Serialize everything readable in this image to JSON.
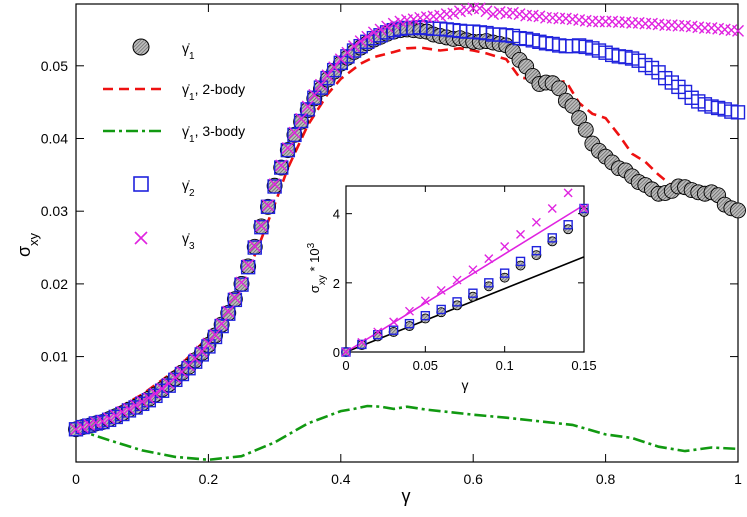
{
  "chart_data": {
    "type": "scatter",
    "main": {
      "xlabel": "γ",
      "ylabel": "σ",
      "ylabel_sub": "xy",
      "xlim": [
        0,
        1
      ],
      "ylim": [
        -0.0045,
        0.0585
      ],
      "xticks": [
        "0",
        "0.2",
        "0.4",
        "0.6",
        "0.8",
        "1"
      ],
      "xtick_values": [
        0,
        0.2,
        0.4,
        0.6,
        0.8,
        1
      ],
      "yticks": [
        "0.01",
        "0.02",
        "0.03",
        "0.04",
        "0.05"
      ],
      "ytick_values": [
        0.01,
        0.02,
        0.03,
        0.04,
        0.05
      ],
      "legend": [
        {
          "name": "γ̇",
          "sub": "1",
          "suffix": "",
          "marker": "circle",
          "color": "#000000"
        },
        {
          "name": "γ̇",
          "sub": "1",
          "suffix": ", 2-body",
          "marker": "dashed-line",
          "color": "#ee1111"
        },
        {
          "name": "γ̇",
          "sub": "1",
          "suffix": ", 3-body",
          "marker": "dashdot-line",
          "color": "#119911"
        },
        {
          "name": "γ̇",
          "sub": "2",
          "suffix": "",
          "marker": "square",
          "color": "#1f22dd"
        },
        {
          "name": "γ̇",
          "sub": "3",
          "suffix": "",
          "marker": "cross",
          "color": "#e023e0"
        }
      ],
      "series": [
        {
          "name": "gamma_dot_1",
          "marker": "circle",
          "x": [
            0,
            0.01,
            0.02,
            0.03,
            0.04,
            0.05,
            0.06,
            0.07,
            0.08,
            0.09,
            0.1,
            0.11,
            0.12,
            0.13,
            0.14,
            0.15,
            0.16,
            0.17,
            0.18,
            0.19,
            0.2,
            0.21,
            0.22,
            0.23,
            0.24,
            0.25,
            0.26,
            0.27,
            0.28,
            0.29,
            0.3,
            0.31,
            0.32,
            0.33,
            0.34,
            0.35,
            0.36,
            0.37,
            0.38,
            0.39,
            0.4,
            0.41,
            0.42,
            0.43,
            0.44,
            0.45,
            0.46,
            0.47,
            0.48,
            0.49,
            0.5,
            0.51,
            0.52,
            0.53,
            0.54,
            0.55,
            0.56,
            0.57,
            0.58,
            0.59,
            0.6,
            0.61,
            0.62,
            0.63,
            0.64,
            0.65,
            0.66,
            0.67,
            0.68,
            0.69,
            0.7,
            0.71,
            0.72,
            0.73,
            0.74,
            0.75,
            0.76,
            0.77,
            0.78,
            0.79,
            0.8,
            0.81,
            0.82,
            0.83,
            0.84,
            0.85,
            0.86,
            0.87,
            0.88,
            0.89,
            0.9,
            0.91,
            0.92,
            0.93,
            0.94,
            0.95,
            0.96,
            0.97,
            0.98,
            0.99,
            1.0
          ],
          "y": [
            0.0,
            0.0003,
            0.0005,
            0.0008,
            0.001,
            0.0014,
            0.0018,
            0.0022,
            0.0027,
            0.0031,
            0.0036,
            0.0042,
            0.0048,
            0.0055,
            0.0062,
            0.007,
            0.0078,
            0.0086,
            0.0095,
            0.0105,
            0.0116,
            0.0129,
            0.0144,
            0.016,
            0.0179,
            0.02,
            0.0224,
            0.0251,
            0.0279,
            0.0306,
            0.0335,
            0.036,
            0.0384,
            0.0405,
            0.0423,
            0.0439,
            0.0455,
            0.0468,
            0.0481,
            0.0492,
            0.0503,
            0.0511,
            0.0519,
            0.0525,
            0.0531,
            0.0536,
            0.054,
            0.0544,
            0.0547,
            0.0549,
            0.055,
            0.0549,
            0.0548,
            0.0547,
            0.0543,
            0.0541,
            0.0539,
            0.0537,
            0.0538,
            0.0535,
            0.0533,
            0.0533,
            0.0534,
            0.0532,
            0.053,
            0.0528,
            0.052,
            0.0508,
            0.0499,
            0.0486,
            0.0475,
            0.0477,
            0.0476,
            0.0469,
            0.0452,
            0.0445,
            0.0428,
            0.0412,
            0.0393,
            0.0383,
            0.0375,
            0.0367,
            0.0359,
            0.0356,
            0.0348,
            0.034,
            0.0336,
            0.033,
            0.0324,
            0.0325,
            0.0328,
            0.0334,
            0.0333,
            0.0329,
            0.0326,
            0.0324,
            0.0326,
            0.0322,
            0.0309,
            0.0304,
            0.0301
          ]
        },
        {
          "name": "gamma_dot_2",
          "marker": "square",
          "x": [
            0,
            0.01,
            0.02,
            0.03,
            0.04,
            0.05,
            0.06,
            0.07,
            0.08,
            0.09,
            0.1,
            0.11,
            0.12,
            0.13,
            0.14,
            0.15,
            0.16,
            0.17,
            0.18,
            0.19,
            0.2,
            0.21,
            0.22,
            0.23,
            0.24,
            0.25,
            0.26,
            0.27,
            0.28,
            0.29,
            0.3,
            0.31,
            0.32,
            0.33,
            0.34,
            0.35,
            0.36,
            0.37,
            0.38,
            0.39,
            0.4,
            0.41,
            0.42,
            0.43,
            0.44,
            0.45,
            0.46,
            0.47,
            0.48,
            0.49,
            0.5,
            0.51,
            0.52,
            0.53,
            0.54,
            0.55,
            0.56,
            0.57,
            0.58,
            0.59,
            0.6,
            0.61,
            0.62,
            0.63,
            0.64,
            0.65,
            0.66,
            0.67,
            0.68,
            0.69,
            0.7,
            0.71,
            0.72,
            0.73,
            0.74,
            0.75,
            0.76,
            0.77,
            0.78,
            0.79,
            0.8,
            0.81,
            0.82,
            0.83,
            0.84,
            0.85,
            0.86,
            0.87,
            0.88,
            0.89,
            0.9,
            0.91,
            0.92,
            0.93,
            0.94,
            0.95,
            0.96,
            0.97,
            0.98,
            0.99,
            1.0
          ],
          "y": [
            0.0,
            0.0003,
            0.0005,
            0.0008,
            0.001,
            0.0013,
            0.0017,
            0.0021,
            0.0026,
            0.003,
            0.0035,
            0.004,
            0.0046,
            0.0053,
            0.006,
            0.0068,
            0.0076,
            0.0084,
            0.0093,
            0.0103,
            0.0114,
            0.0127,
            0.0142,
            0.0159,
            0.0178,
            0.0199,
            0.0223,
            0.025,
            0.0278,
            0.0306,
            0.0334,
            0.036,
            0.0384,
            0.0405,
            0.0424,
            0.044,
            0.0456,
            0.047,
            0.0483,
            0.0494,
            0.0504,
            0.0513,
            0.0521,
            0.0527,
            0.0533,
            0.0538,
            0.0542,
            0.0546,
            0.0549,
            0.0551,
            0.0552,
            0.0552,
            0.0553,
            0.0552,
            0.0551,
            0.0551,
            0.055,
            0.0549,
            0.0548,
            0.0547,
            0.0547,
            0.0546,
            0.0545,
            0.0543,
            0.0543,
            0.0542,
            0.0541,
            0.0538,
            0.0537,
            0.0535,
            0.0533,
            0.0531,
            0.053,
            0.0528,
            0.0527,
            0.0527,
            0.0528,
            0.0526,
            0.0524,
            0.0521,
            0.0518,
            0.0515,
            0.0513,
            0.0512,
            0.051,
            0.0507,
            0.0501,
            0.0497,
            0.0491,
            0.0483,
            0.0477,
            0.0471,
            0.0464,
            0.0456,
            0.0451,
            0.0447,
            0.0444,
            0.0442,
            0.044,
            0.0437,
            0.0436
          ]
        },
        {
          "name": "gamma_dot_3",
          "marker": "cross",
          "x": [
            0,
            0.01,
            0.02,
            0.03,
            0.04,
            0.05,
            0.06,
            0.07,
            0.08,
            0.09,
            0.1,
            0.11,
            0.12,
            0.13,
            0.14,
            0.15,
            0.16,
            0.17,
            0.18,
            0.19,
            0.2,
            0.21,
            0.22,
            0.23,
            0.24,
            0.25,
            0.26,
            0.27,
            0.28,
            0.29,
            0.3,
            0.31,
            0.32,
            0.33,
            0.34,
            0.35,
            0.36,
            0.37,
            0.38,
            0.39,
            0.4,
            0.41,
            0.42,
            0.43,
            0.44,
            0.45,
            0.46,
            0.47,
            0.48,
            0.49,
            0.5,
            0.51,
            0.52,
            0.53,
            0.54,
            0.55,
            0.56,
            0.57,
            0.58,
            0.59,
            0.6,
            0.61,
            0.62,
            0.63,
            0.64,
            0.65,
            0.66,
            0.67,
            0.68,
            0.69,
            0.7,
            0.71,
            0.72,
            0.73,
            0.74,
            0.75,
            0.76,
            0.77,
            0.78,
            0.79,
            0.8,
            0.81,
            0.82,
            0.83,
            0.84,
            0.85,
            0.86,
            0.87,
            0.88,
            0.89,
            0.9,
            0.91,
            0.92,
            0.93,
            0.94,
            0.95,
            0.96,
            0.97,
            0.98,
            0.99,
            1.0
          ],
          "y": [
            0.0,
            0.0003,
            0.0006,
            0.0009,
            0.0011,
            0.0015,
            0.0019,
            0.0024,
            0.0028,
            0.0033,
            0.0038,
            0.0043,
            0.0049,
            0.0056,
            0.0063,
            0.0071,
            0.0079,
            0.0088,
            0.0097,
            0.0107,
            0.0118,
            0.013,
            0.0145,
            0.0162,
            0.0181,
            0.0202,
            0.0226,
            0.0252,
            0.028,
            0.0308,
            0.0337,
            0.0363,
            0.0387,
            0.0408,
            0.0427,
            0.0444,
            0.046,
            0.0474,
            0.0487,
            0.0498,
            0.0509,
            0.0518,
            0.0527,
            0.0534,
            0.054,
            0.0546,
            0.055,
            0.0554,
            0.0558,
            0.0561,
            0.0563,
            0.0564,
            0.0566,
            0.0567,
            0.0568,
            0.0569,
            0.0571,
            0.0572,
            0.0575,
            0.0577,
            0.0579,
            0.0579,
            0.0575,
            0.0571,
            0.0574,
            0.0572,
            0.0573,
            0.0571,
            0.0569,
            0.0569,
            0.0568,
            0.0566,
            0.0566,
            0.0565,
            0.0565,
            0.0564,
            0.0563,
            0.0562,
            0.0561,
            0.0561,
            0.0561,
            0.0561,
            0.056,
            0.056,
            0.0559,
            0.0559,
            0.0558,
            0.0558,
            0.0557,
            0.0556,
            0.0556,
            0.0555,
            0.0555,
            0.0554,
            0.0553,
            0.0552,
            0.0552,
            0.0551,
            0.055,
            0.0549,
            0.0548
          ]
        }
      ],
      "lines": [
        {
          "name": "2-body",
          "style": "dashed",
          "color": "#ee1111",
          "x": [
            0,
            0.05,
            0.1,
            0.15,
            0.2,
            0.25,
            0.28,
            0.3,
            0.32,
            0.35,
            0.38,
            0.4,
            0.43,
            0.45,
            0.48,
            0.5,
            0.52,
            0.55,
            0.58,
            0.6,
            0.62,
            0.65,
            0.67,
            0.7,
            0.72,
            0.74,
            0.76,
            0.78,
            0.8,
            0.82,
            0.84,
            0.86,
            0.88,
            0.9,
            0.92,
            0.94,
            0.96,
            0.98,
            1.0
          ],
          "y": [
            0.0,
            0.0022,
            0.0048,
            0.0081,
            0.0127,
            0.0195,
            0.0262,
            0.0309,
            0.0359,
            0.0418,
            0.0461,
            0.0482,
            0.0503,
            0.0512,
            0.0519,
            0.0524,
            0.0525,
            0.0521,
            0.0524,
            0.0521,
            0.0517,
            0.0509,
            0.0484,
            0.048,
            0.0476,
            0.0479,
            0.0449,
            0.0434,
            0.0428,
            0.0405,
            0.0379,
            0.0368,
            0.035,
            0.0335,
            0.0337,
            0.0332,
            0.0325,
            0.0316,
            0.0304
          ]
        },
        {
          "name": "3-body",
          "style": "dashdot",
          "color": "#119911",
          "x": [
            0,
            0.05,
            0.1,
            0.15,
            0.2,
            0.25,
            0.3,
            0.35,
            0.4,
            0.42,
            0.44,
            0.46,
            0.48,
            0.5,
            0.53,
            0.56,
            0.6,
            0.65,
            0.7,
            0.75,
            0.8,
            0.84,
            0.88,
            0.92,
            0.96,
            1.0
          ],
          "y": [
            0.0,
            -0.0015,
            -0.0029,
            -0.0038,
            -0.0042,
            -0.0037,
            -0.0018,
            0.0008,
            0.0025,
            0.0028,
            0.0032,
            0.0031,
            0.0028,
            0.0031,
            0.0027,
            0.0024,
            0.002,
            0.0016,
            0.0011,
            0.0006,
            -0.0007,
            -0.0012,
            -0.0024,
            -0.003,
            -0.0025,
            -0.0027
          ]
        }
      ]
    },
    "inset": {
      "xlabel": "γ",
      "ylabel": "σ",
      "ylabel_sub": "xy",
      "ylabel_suffix": " * 10",
      "ylabel_sup": "3",
      "xlim": [
        0,
        0.15
      ],
      "ylim": [
        0,
        4.8
      ],
      "xticks": [
        "0",
        "0.05",
        "0.1",
        "0.15"
      ],
      "xtick_values": [
        0,
        0.05,
        0.1,
        0.15
      ],
      "yticks": [
        "0",
        "2",
        "4"
      ],
      "ytick_values": [
        0,
        2,
        4
      ],
      "series": [
        {
          "name": "gamma_dot_1",
          "marker": "circle",
          "x": [
            0,
            0.01,
            0.02,
            0.03,
            0.04,
            0.05,
            0.06,
            0.07,
            0.08,
            0.09,
            0.1,
            0.11,
            0.12,
            0.13,
            0.14,
            0.15
          ],
          "y": [
            0.0,
            0.2,
            0.45,
            0.58,
            0.75,
            0.97,
            1.15,
            1.35,
            1.6,
            1.9,
            2.15,
            2.5,
            2.8,
            3.2,
            3.55,
            4.05
          ]
        },
        {
          "name": "gamma_dot_2",
          "marker": "square",
          "x": [
            0,
            0.01,
            0.02,
            0.03,
            0.04,
            0.05,
            0.06,
            0.07,
            0.08,
            0.09,
            0.1,
            0.11,
            0.12,
            0.13,
            0.14,
            0.15
          ],
          "y": [
            0.0,
            0.22,
            0.5,
            0.63,
            0.82,
            1.05,
            1.23,
            1.45,
            1.7,
            2.0,
            2.28,
            2.62,
            2.93,
            3.3,
            3.68,
            4.15
          ]
        },
        {
          "name": "gamma_dot_3",
          "marker": "cross",
          "x": [
            0,
            0.01,
            0.02,
            0.03,
            0.04,
            0.05,
            0.06,
            0.07,
            0.08,
            0.09,
            0.1,
            0.11,
            0.12,
            0.13,
            0.14,
            0.15
          ],
          "y": [
            0.0,
            0.28,
            0.58,
            0.87,
            1.18,
            1.48,
            1.78,
            2.08,
            2.38,
            2.7,
            3.05,
            3.4,
            3.75,
            4.15,
            4.6,
            4.15
          ]
        }
      ],
      "lines": [
        {
          "name": "fit-black",
          "color": "#000000",
          "x": [
            0,
            0.15
          ],
          "y": [
            0,
            2.75
          ]
        },
        {
          "name": "fit-magenta",
          "color": "#e023e0",
          "x": [
            0,
            0.15
          ],
          "y": [
            0,
            4.25
          ]
        }
      ]
    }
  }
}
